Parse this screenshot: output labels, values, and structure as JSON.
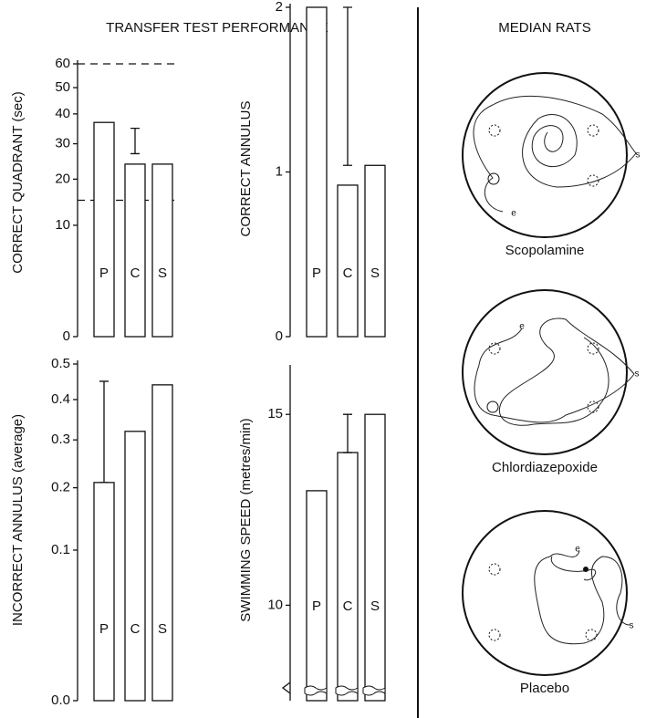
{
  "title": "TRANSFER TEST PERFORMANCE",
  "chart_data": [
    {
      "type": "bar",
      "y_label": "CORRECT QUADRANT (sec)",
      "categories": [
        "P",
        "C",
        "S"
      ],
      "values": [
        37,
        24,
        24
      ],
      "error_bars": [
        null,
        [
          27,
          35
        ],
        null
      ],
      "ylim": [
        0,
        60
      ],
      "yticks": [
        0,
        10,
        20,
        30,
        40,
        50,
        60
      ],
      "y_scale": "sqrt",
      "reference_lines": [
        60,
        15
      ],
      "color": "#ffffff"
    },
    {
      "type": "bar",
      "y_label": "CORRECT ANNULUS",
      "categories": [
        "P",
        "C",
        "S"
      ],
      "values": [
        2.0,
        0.92,
        1.04
      ],
      "error_bars": [
        null,
        [
          1.04,
          2.0
        ],
        null
      ],
      "ylim": [
        0,
        2
      ],
      "yticks": [
        0,
        1,
        2
      ],
      "y_scale": "linear",
      "color": "#ffffff"
    },
    {
      "type": "bar",
      "y_label": "INCORRECT ANNULUS (average)",
      "categories": [
        "P",
        "C",
        "S"
      ],
      "values": [
        0.21,
        0.32,
        0.44
      ],
      "error_bars": [
        [
          0.21,
          0.45
        ],
        null,
        null
      ],
      "ylim": [
        0,
        0.5
      ],
      "yticks": [
        {
          "value": 0,
          "label": "0.0"
        },
        0.1,
        0.2,
        0.3,
        0.4,
        0.5
      ],
      "y_scale": "sqrt",
      "color": "#ffffff"
    },
    {
      "type": "bar",
      "y_label": "SWIMMING SPEED (metres/min)",
      "categories": [
        "P",
        "C",
        "S"
      ],
      "values": [
        13.0,
        14.0,
        15.0
      ],
      "error_bars": [
        null,
        [
          14.0,
          15.0
        ],
        null
      ],
      "ylim": [
        7.5,
        16.2
      ],
      "yticks": [
        10,
        15
      ],
      "y_scale": "linear",
      "axis_break": true,
      "color": "#ffffff"
    }
  ],
  "diagram": {
    "title": "MEDIAN RATS",
    "panels": [
      {
        "label": "Scopolamine",
        "start": "s",
        "end": "e"
      },
      {
        "label": "Chlordiazepoxide",
        "start": "s",
        "end": "e"
      },
      {
        "label": "Placebo",
        "start": "s",
        "end": "e"
      }
    ]
  }
}
